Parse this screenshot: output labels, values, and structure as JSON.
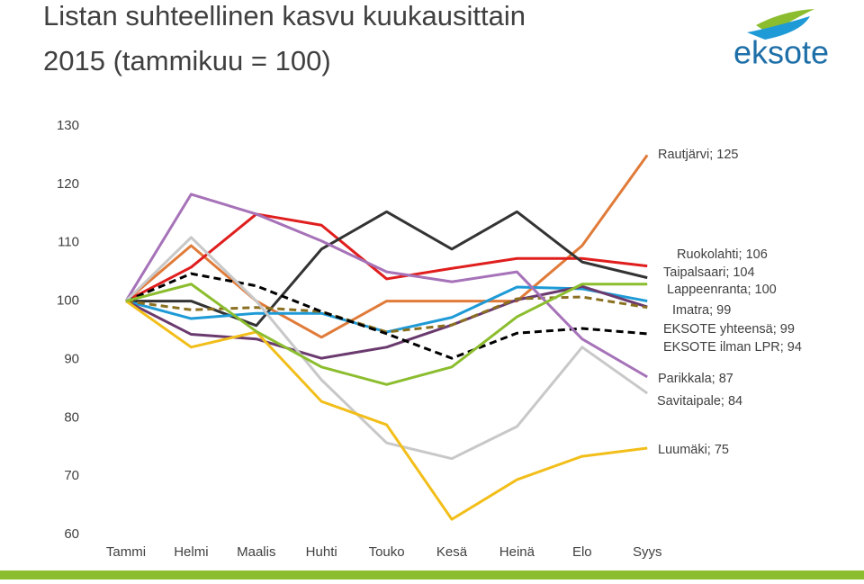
{
  "chart_data": {
    "type": "line",
    "title": [
      "Listan suhteellinen kasvu kuukausittain",
      "2015 (tammikuu = 100)"
    ],
    "logo": "eksote",
    "categories": [
      "Tammi",
      "Helmi",
      "Maalis",
      "Huhti",
      "Touko",
      "Kesä",
      "Heinä",
      "Elo",
      "Syys"
    ],
    "ylim": [
      60,
      130
    ],
    "yticks": [
      60,
      70,
      80,
      90,
      100,
      110,
      120,
      130
    ],
    "series": [
      {
        "name": "Rautjärvi; 125",
        "color": "#e07b39",
        "values": [
          100,
          109.5,
          100,
          93.8,
          100,
          100,
          100,
          109.5,
          125
        ]
      },
      {
        "name": "Ruokolahti; 106",
        "color": "#e01e1e",
        "values": [
          100,
          105.8,
          114.9,
          113,
          103.8,
          105.6,
          107.3,
          107.3,
          106
        ]
      },
      {
        "name": "Taipalsaari; 104",
        "color": "#333333",
        "values": [
          100,
          100,
          95.8,
          108.9,
          115.3,
          108.9,
          115.3,
          106.7,
          104
        ]
      },
      {
        "name": "Lappeenranta; 100",
        "color": "#1e9ad6",
        "values": [
          100,
          97,
          97.9,
          97.9,
          94.7,
          97.2,
          102.4,
          102.1,
          100
        ]
      },
      {
        "name": "Imatra; 99",
        "color": "#6a3a6e",
        "values": [
          100,
          94.3,
          93.5,
          90.2,
          92.1,
          95.9,
          100.2,
          102.5,
          99
        ]
      },
      {
        "name": "EKSOTE yhteensä; 99",
        "color": "#8a7020",
        "dashed": true,
        "values": [
          100,
          98.5,
          98.9,
          98.2,
          94.7,
          95.9,
          100.4,
          100.7,
          98.9
        ]
      },
      {
        "name": "EKSOTE ilman LPR; 94",
        "color": "#000000",
        "dashed": true,
        "values": [
          100,
          104.7,
          102.6,
          98.2,
          94.4,
          90.2,
          94.5,
          95.3,
          94.4
        ]
      },
      {
        "name": "Parikkala; 87",
        "color": "#a672b8",
        "values": [
          100,
          118.3,
          114.9,
          110.3,
          105,
          103.3,
          105,
          93.5,
          87
        ]
      },
      {
        "name": "Savitaipale; 84",
        "color": "#c8c8c8",
        "values": [
          100,
          110.9,
          100,
          86.5,
          75.7,
          73,
          78.5,
          92.1,
          84.2
        ]
      },
      {
        "name": "Luumäki; 75",
        "color": "#f2be1a",
        "values": [
          100,
          92.1,
          94.7,
          82.8,
          78.8,
          62.6,
          69.4,
          73.4,
          74.8
        ]
      },
      {
        "color": "#8cbd2e",
        "values": [
          100,
          102.9,
          94.8,
          88.7,
          85.7,
          88.7,
          97.3,
          102.9,
          102.9
        ]
      }
    ]
  }
}
